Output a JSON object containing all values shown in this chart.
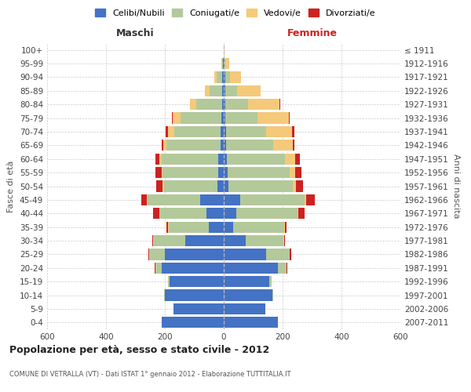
{
  "age_groups": [
    "0-4",
    "5-9",
    "10-14",
    "15-19",
    "20-24",
    "25-29",
    "30-34",
    "35-39",
    "40-44",
    "45-49",
    "50-54",
    "55-59",
    "60-64",
    "65-69",
    "70-74",
    "75-79",
    "80-84",
    "85-89",
    "90-94",
    "95-99",
    "100+"
  ],
  "birth_years": [
    "2007-2011",
    "2002-2006",
    "1997-2001",
    "1992-1996",
    "1987-1991",
    "1982-1986",
    "1977-1981",
    "1972-1976",
    "1967-1971",
    "1962-1966",
    "1957-1961",
    "1952-1956",
    "1947-1951",
    "1942-1946",
    "1937-1941",
    "1932-1936",
    "1927-1931",
    "1922-1926",
    "1917-1921",
    "1912-1916",
    "≤ 1911"
  ],
  "male_celibe": [
    210,
    170,
    200,
    185,
    210,
    200,
    130,
    50,
    60,
    80,
    22,
    20,
    18,
    12,
    10,
    8,
    5,
    5,
    5,
    2,
    1
  ],
  "male_coniugato": [
    0,
    0,
    4,
    4,
    22,
    52,
    108,
    138,
    158,
    180,
    182,
    188,
    192,
    182,
    158,
    138,
    88,
    42,
    18,
    4,
    0
  ],
  "male_vedovo": [
    0,
    0,
    0,
    0,
    0,
    1,
    1,
    1,
    1,
    1,
    4,
    4,
    8,
    12,
    22,
    28,
    22,
    18,
    8,
    2,
    0
  ],
  "male_divorziato": [
    0,
    0,
    0,
    0,
    2,
    4,
    4,
    6,
    20,
    18,
    22,
    20,
    14,
    5,
    8,
    1,
    1,
    0,
    0,
    0,
    0
  ],
  "female_nubile": [
    185,
    140,
    165,
    155,
    185,
    145,
    75,
    32,
    42,
    55,
    16,
    13,
    11,
    9,
    7,
    6,
    4,
    4,
    4,
    2,
    0
  ],
  "female_coniugata": [
    0,
    0,
    4,
    8,
    28,
    78,
    128,
    172,
    208,
    220,
    218,
    212,
    198,
    158,
    138,
    108,
    78,
    42,
    16,
    4,
    0
  ],
  "female_vedova": [
    0,
    0,
    0,
    0,
    1,
    1,
    2,
    4,
    4,
    6,
    10,
    18,
    33,
    68,
    88,
    108,
    108,
    78,
    38,
    12,
    2
  ],
  "female_divorziata": [
    0,
    0,
    0,
    0,
    1,
    4,
    4,
    6,
    20,
    28,
    25,
    22,
    16,
    4,
    7,
    1,
    1,
    0,
    0,
    0,
    0
  ],
  "color_celibe": "#4472c4",
  "color_coniugato": "#b3c99a",
  "color_vedovo": "#f5c97a",
  "color_divorziato": "#cc2222",
  "legend_labels": [
    "Celibi/Nubili",
    "Coniugati/e",
    "Vedovi/e",
    "Divorziati/e"
  ],
  "xlim": 600,
  "title": "Popolazione per età, sesso e stato civile - 2012",
  "subtitle": "COMUNE DI VETRALLA (VT) - Dati ISTAT 1° gennaio 2012 - Elaborazione TUTTITALIA.IT",
  "maschi_label": "Maschi",
  "femmine_label": "Femmine",
  "ylabel_left": "Fasce di età",
  "ylabel_right": "Anni di nascita",
  "bg_color": "#ffffff",
  "grid_color": "#cccccc"
}
